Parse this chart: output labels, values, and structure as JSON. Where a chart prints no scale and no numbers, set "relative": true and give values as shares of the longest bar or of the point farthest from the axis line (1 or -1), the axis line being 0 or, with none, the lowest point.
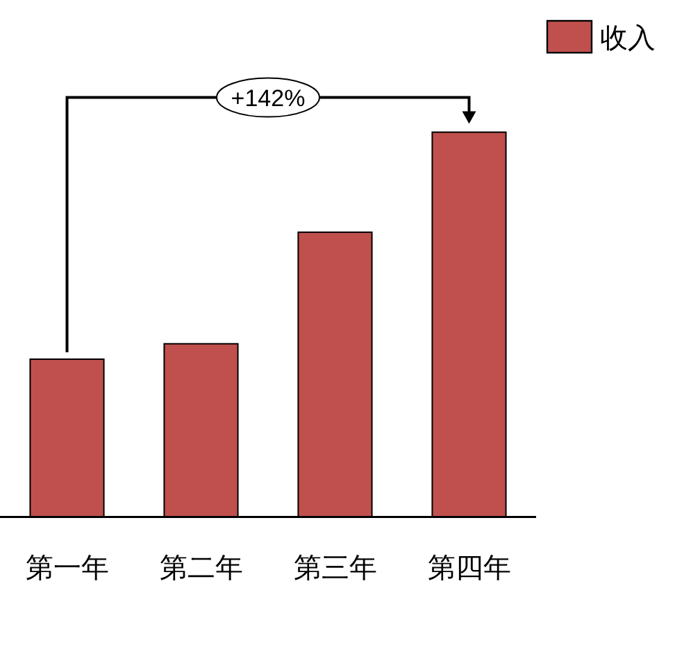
{
  "chart_data": {
    "type": "bar",
    "categories": [
      "第一年",
      "第二年",
      "第三年",
      "第四年"
    ],
    "series": [
      {
        "name": "收入",
        "color": "#c0504d",
        "values": [
          0.41,
          0.45,
          0.74,
          1
        ]
      }
    ],
    "relative": true,
    "legend": "top right",
    "annotations": [
      "+142%"
    ]
  }
}
